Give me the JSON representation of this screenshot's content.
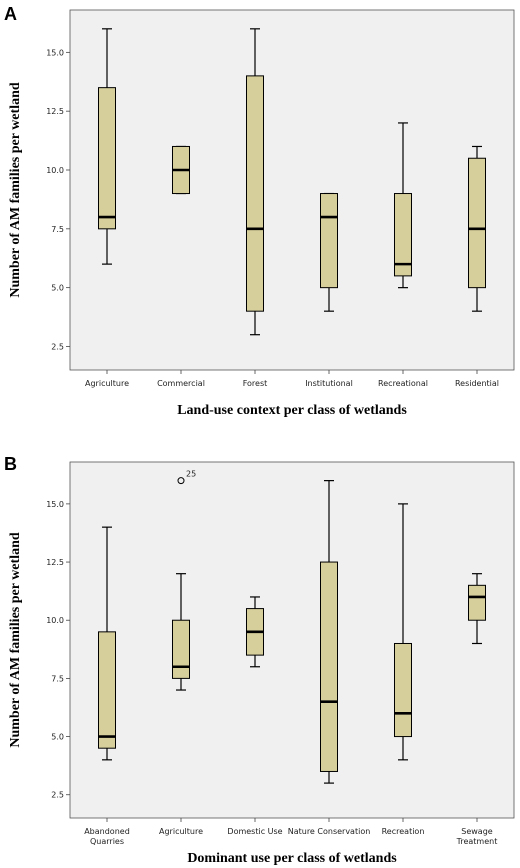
{
  "chart_data": [
    {
      "type": "boxplot",
      "panel_label": "A",
      "ylabel": "Number of AM families per wetland",
      "xlabel": "Land-use context per class of wetlands",
      "ylim": [
        1.5,
        16.8
      ],
      "yticks": [
        "2.5",
        "5.0",
        "7.5",
        "10.0",
        "12.5",
        "15.0"
      ],
      "categories": [
        {
          "label": [
            "Agriculture"
          ],
          "min": 6,
          "q1": 7.5,
          "median": 8,
          "q3": 13.5,
          "max": 16
        },
        {
          "label": [
            "Commercial"
          ],
          "min": 9,
          "q1": 9,
          "median": 10,
          "q3": 11,
          "max": 11
        },
        {
          "label": [
            "Forest"
          ],
          "min": 3,
          "q1": 4,
          "median": 7.5,
          "q3": 14,
          "max": 16
        },
        {
          "label": [
            "Institutional"
          ],
          "min": 4,
          "q1": 5,
          "median": 8,
          "q3": 9,
          "max": 9
        },
        {
          "label": [
            "Recreational"
          ],
          "min": 5,
          "q1": 5.5,
          "median": 6,
          "q3": 9,
          "max": 12
        },
        {
          "label": [
            "Residential"
          ],
          "min": 4,
          "q1": 5,
          "median": 7.5,
          "q3": 10.5,
          "max": 11
        }
      ],
      "outliers": [],
      "colors": {
        "box": "#d6cf9c",
        "background": "#f0f0f0"
      }
    },
    {
      "type": "boxplot",
      "panel_label": "B",
      "ylabel": "Number of AM families per wetland",
      "xlabel": "Dominant use per class of wetlands",
      "ylim": [
        1.5,
        16.8
      ],
      "yticks": [
        "2.5",
        "5.0",
        "7.5",
        "10.0",
        "12.5",
        "15.0"
      ],
      "categories": [
        {
          "label": [
            "Abandoned",
            "Quarries"
          ],
          "min": 4,
          "q1": 4.5,
          "median": 5,
          "q3": 9.5,
          "max": 14
        },
        {
          "label": [
            "Agriculture"
          ],
          "min": 7,
          "q1": 7.5,
          "median": 8,
          "q3": 10,
          "max": 12
        },
        {
          "label": [
            "Domestic Use"
          ],
          "min": 8,
          "q1": 8.5,
          "median": 9.5,
          "q3": 10.5,
          "max": 11
        },
        {
          "label": [
            "Nature Conservation"
          ],
          "min": 3,
          "q1": 3.5,
          "median": 6.5,
          "q3": 12.5,
          "max": 16
        },
        {
          "label": [
            "Recreation"
          ],
          "min": 4,
          "q1": 5,
          "median": 6,
          "q3": 9,
          "max": 15
        },
        {
          "label": [
            "Sewage",
            "Treatment"
          ],
          "min": 9,
          "q1": 10,
          "median": 11,
          "q3": 11.5,
          "max": 12
        }
      ],
      "outliers": [
        {
          "category": 1,
          "value": 16,
          "label": "25"
        }
      ],
      "colors": {
        "box": "#d6cf9c",
        "background": "#f0f0f0"
      }
    }
  ]
}
